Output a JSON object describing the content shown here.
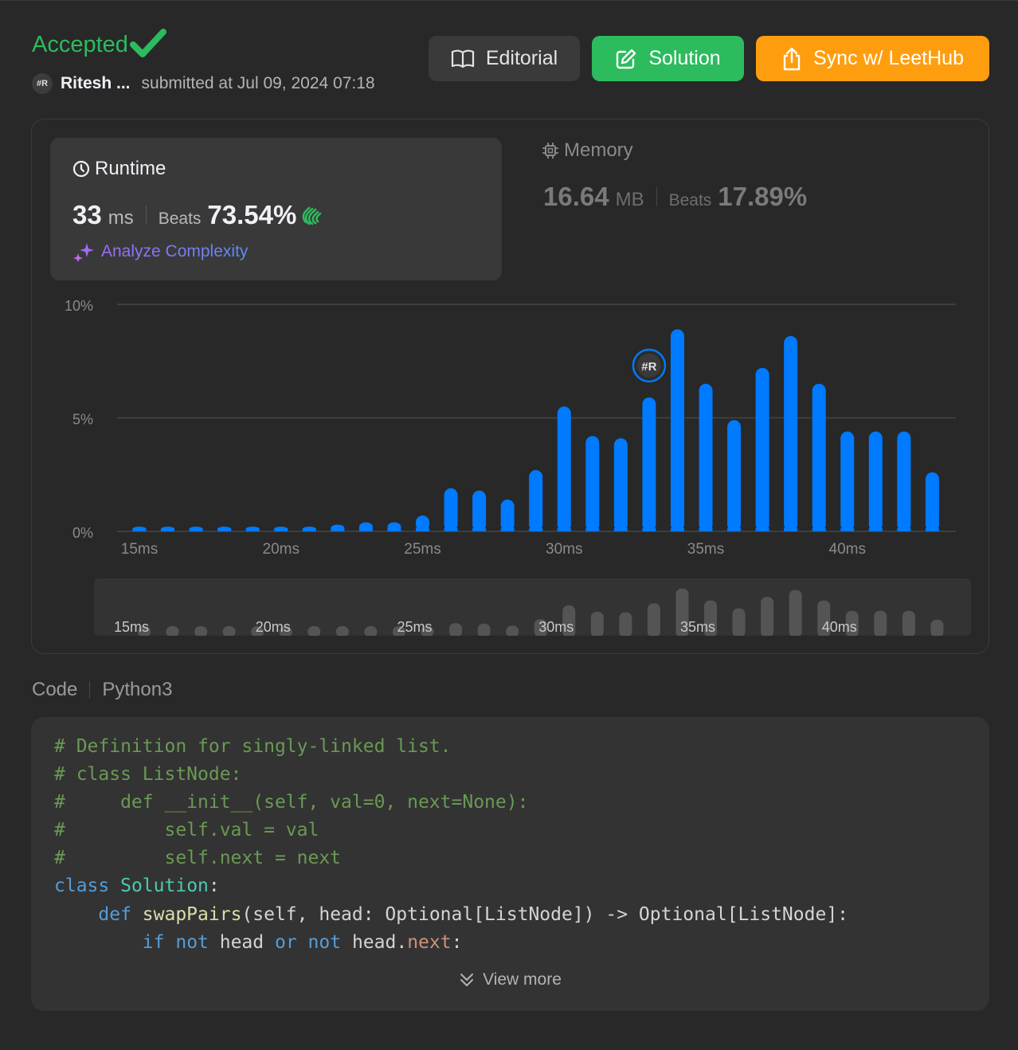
{
  "header": {
    "status": "Accepted",
    "status_icon": "check-icon",
    "submitter": {
      "avatar_text": "#R",
      "name": "Ritesh ...",
      "submitted_at": "submitted at Jul 09, 2024 07:18"
    },
    "buttons": {
      "editorial": "Editorial",
      "solution": "Solution",
      "sync": "Sync w/ LeetHub"
    }
  },
  "colors": {
    "accepted": "#2cbb5d",
    "solution_button": "#2cbb5d",
    "sync_button": "#fe9e0f",
    "bar": "#007aff",
    "background": "#282828"
  },
  "runtime": {
    "title": "Runtime",
    "value": "33",
    "unit": "ms",
    "beats_label": "Beats",
    "beats_value": "73.54%",
    "analyze_label": "Analyze Complexity"
  },
  "memory": {
    "title": "Memory",
    "value": "16.64",
    "unit": "MB",
    "beats_label": "Beats",
    "beats_value": "17.89%"
  },
  "chart_data": {
    "type": "bar",
    "y_ticks": [
      "10%",
      "5%",
      "0%"
    ],
    "ylim": [
      0,
      10
    ],
    "x_tick_labels": [
      "15ms",
      "20ms",
      "25ms",
      "30ms",
      "35ms",
      "40ms"
    ],
    "x": [
      15,
      16,
      17,
      18,
      19,
      20,
      21,
      22,
      23,
      24,
      25,
      26,
      27,
      28,
      29,
      30,
      31,
      32,
      33,
      34,
      35,
      36,
      37,
      38,
      39,
      40,
      41,
      42,
      43
    ],
    "values": [
      0.1,
      0.1,
      0.1,
      0.1,
      0.1,
      0.1,
      0.1,
      0.3,
      0.4,
      0.4,
      0.7,
      1.9,
      1.8,
      1.4,
      2.7,
      5.5,
      4.2,
      4.1,
      5.9,
      8.9,
      6.5,
      4.9,
      7.2,
      8.6,
      6.5,
      4.4,
      4.4,
      4.4,
      2.6
    ],
    "user_marker_x": 33,
    "user_marker_label": "#R",
    "grid": true
  },
  "code": {
    "label": "Code",
    "language": "Python3",
    "view_more": "View more"
  }
}
